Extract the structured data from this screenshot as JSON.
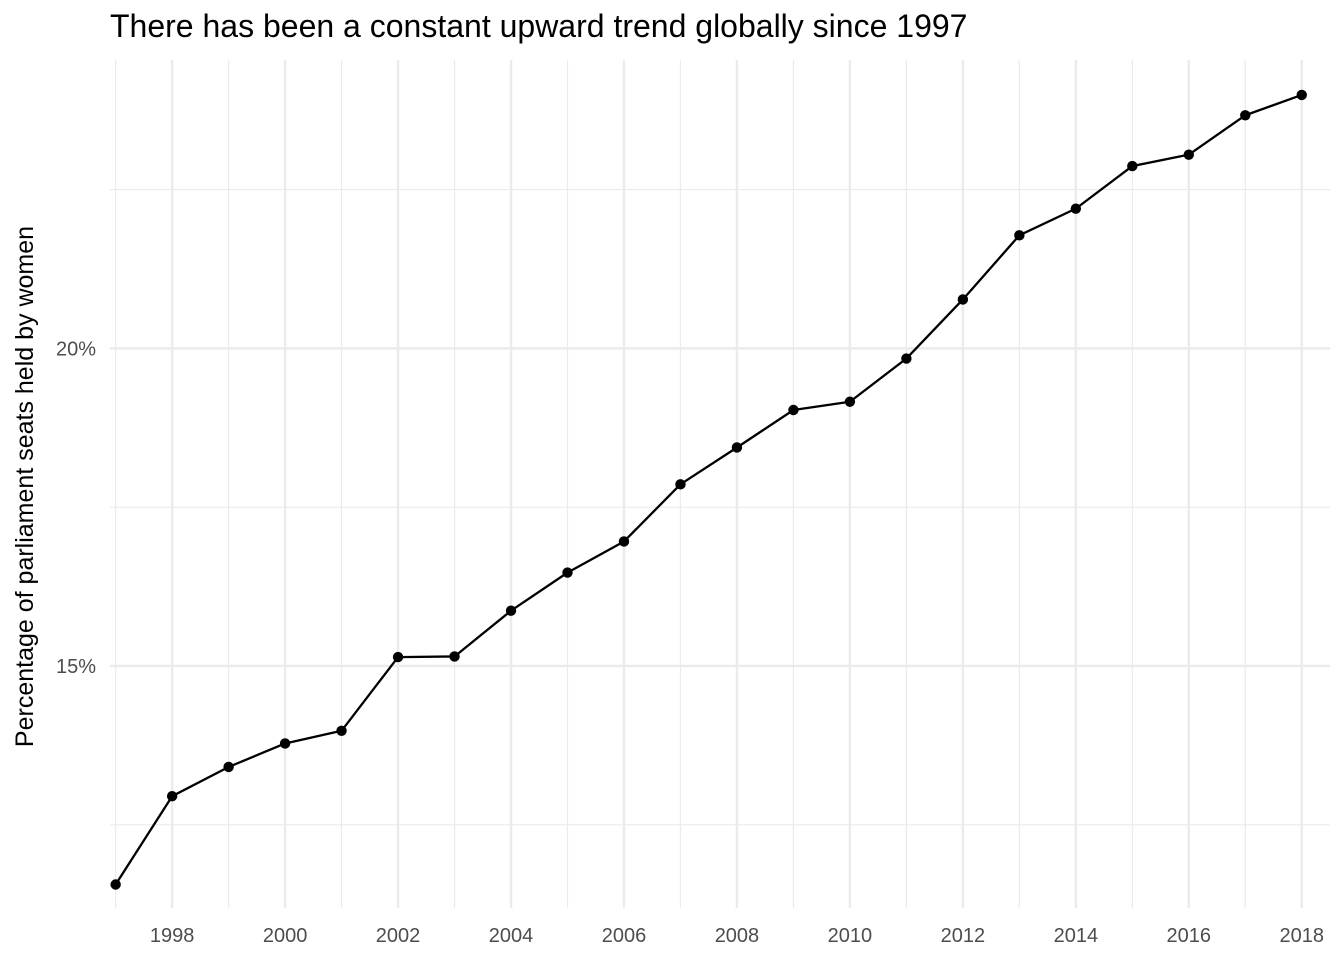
{
  "chart_data": {
    "type": "line",
    "title": "There has been a constant upward trend globally since 1997",
    "xlabel": "",
    "ylabel": "Percentage of parliament seats held by women",
    "x": [
      1997,
      1998,
      1999,
      2000,
      2001,
      2002,
      2003,
      2004,
      2005,
      2006,
      2007,
      2008,
      2009,
      2010,
      2011,
      2012,
      2013,
      2014,
      2015,
      2016,
      2017,
      2018
    ],
    "series": [
      {
        "name": "",
        "values": [
          11.56,
          12.95,
          13.41,
          13.78,
          13.98,
          15.14,
          15.15,
          15.87,
          16.47,
          16.96,
          17.86,
          18.44,
          19.03,
          19.16,
          19.84,
          20.77,
          21.78,
          22.2,
          22.87,
          23.05,
          23.67,
          23.99
        ]
      }
    ],
    "xlim": [
      1996.9,
      2018.5
    ],
    "ylim": [
      11.19,
      24.54
    ],
    "x_ticks": [
      1998,
      2000,
      2002,
      2004,
      2006,
      2008,
      2010,
      2012,
      2014,
      2016,
      2018
    ],
    "x_tick_labels": [
      "1998",
      "2000",
      "2002",
      "2004",
      "2006",
      "2008",
      "2010",
      "2012",
      "2014",
      "2016",
      "2018"
    ],
    "y_ticks": [
      15,
      20
    ],
    "y_tick_labels": [
      "15%",
      "20%"
    ],
    "grid": true,
    "legend": "none",
    "colors": {
      "line": "#000000",
      "grid": "#ebebeb",
      "tick_text": "#4d4d4d"
    }
  }
}
